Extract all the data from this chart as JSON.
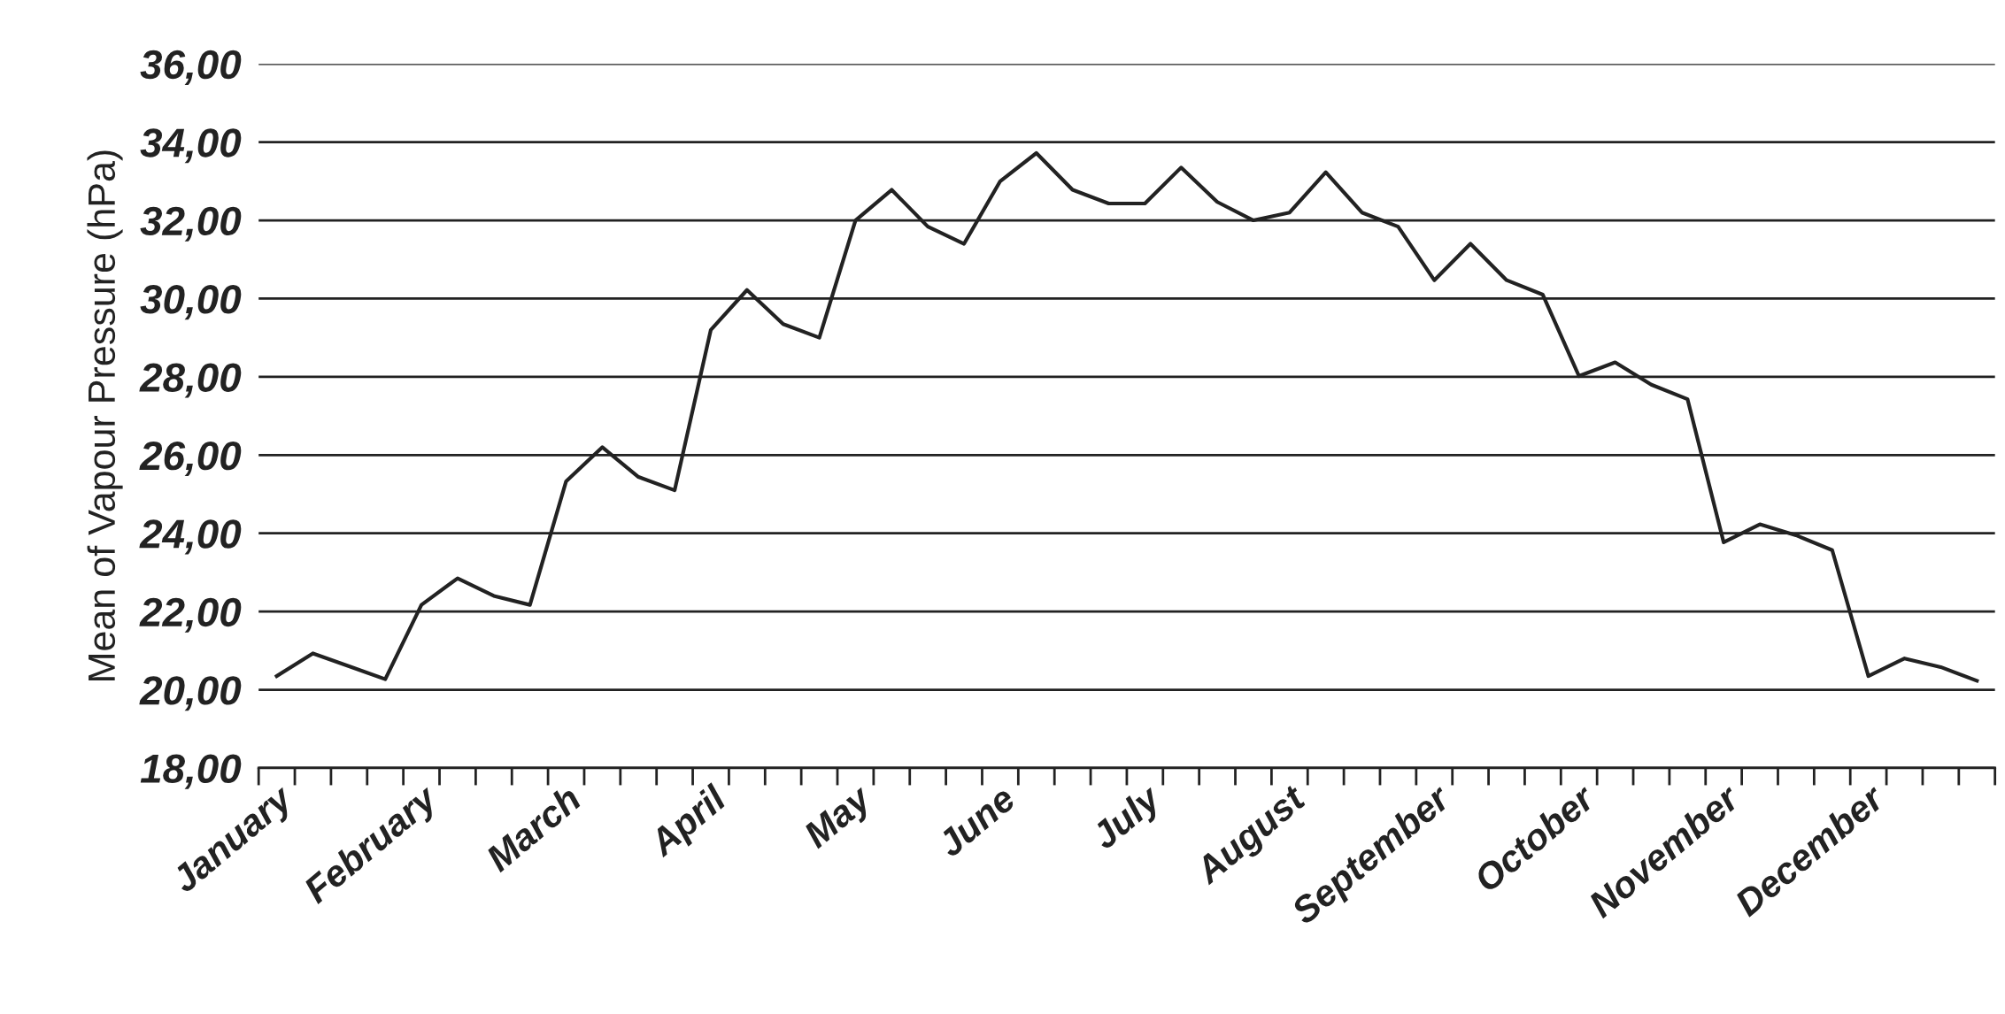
{
  "chart_data": {
    "type": "line",
    "ylabel": "Mean of Vapour Pressure (hPa)",
    "categories": [
      "January",
      null,
      null,
      null,
      "February",
      null,
      null,
      null,
      "March",
      null,
      null,
      null,
      "April",
      null,
      null,
      null,
      "May",
      null,
      null,
      null,
      "June",
      null,
      null,
      null,
      "July",
      null,
      null,
      null,
      "August",
      null,
      null,
      null,
      "September",
      null,
      null,
      null,
      "October",
      null,
      null,
      null,
      "November",
      null,
      null,
      null,
      "December",
      null,
      null,
      null
    ],
    "series": [
      {
        "color": "#222222",
        "values": [
          20.35,
          20.93,
          20.6,
          20.27,
          22.17,
          22.85,
          22.4,
          22.17,
          25.33,
          26.2,
          25.44,
          25.1,
          29.2,
          30.22,
          29.35,
          29.0,
          32.0,
          32.78,
          31.84,
          31.4,
          33.0,
          33.72,
          32.78,
          32.43,
          32.43,
          33.35,
          32.47,
          32.0,
          32.2,
          33.23,
          32.2,
          31.84,
          30.47,
          31.4,
          30.47,
          30.1,
          28.02,
          28.37,
          27.8,
          27.43,
          23.77,
          24.23,
          23.95,
          23.57,
          20.35,
          20.8,
          20.58,
          20.23
        ]
      }
    ],
    "ylim": [
      18,
      36
    ],
    "yticks": [
      {
        "value": 18,
        "label": "18,00"
      },
      {
        "value": 20,
        "label": "20,00"
      },
      {
        "value": 22,
        "label": "22,00"
      },
      {
        "value": 24,
        "label": "24,00"
      },
      {
        "value": 26,
        "label": "26,00"
      },
      {
        "value": 28,
        "label": "28,00"
      },
      {
        "value": 30,
        "label": "30,00"
      },
      {
        "value": 32,
        "label": "32,00"
      },
      {
        "value": 34,
        "label": "34,00"
      },
      {
        "value": 36,
        "label": "36,00"
      }
    ],
    "grid": "y",
    "legend": false,
    "marker": "none",
    "line_style": "solid"
  }
}
